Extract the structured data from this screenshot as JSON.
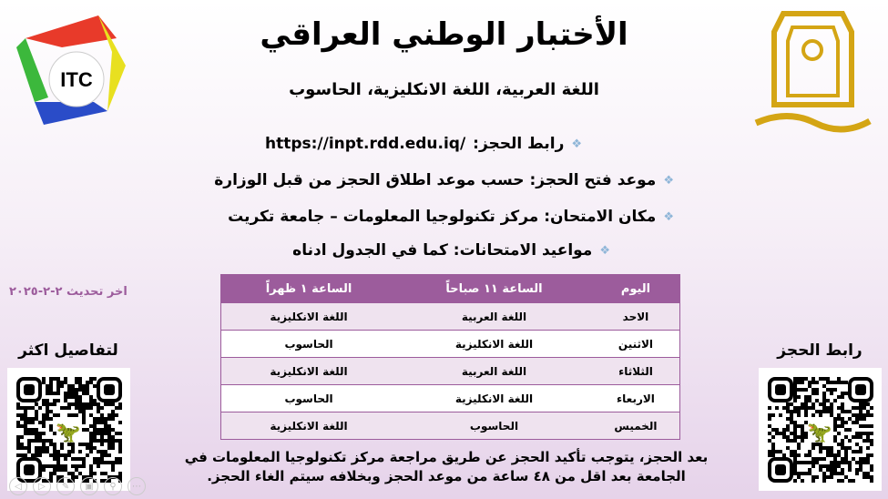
{
  "title": "الأختبار الوطني العراقي",
  "subtitle": "اللغة العربية، اللغة الانكليزية، الحاسوب",
  "bullets": {
    "booking_label": "رابط الحجز:",
    "booking_url": "https://inpt.rdd.edu.iq/",
    "opening": "موعد فتح الحجز: حسب موعد اطلاق الحجز من قبل الوزارة",
    "location": "مكان الامتحان: مركز تكنولوجيا المعلومات – جامعة تكريت",
    "schedule": "مواعيد الامتحانات: كما في الجدول ادناه"
  },
  "table": {
    "headers": [
      "اليوم",
      "الساعة ١١ صباحاً",
      "الساعة ١ ظهراً"
    ],
    "rows": [
      [
        "الاحد",
        "اللغة العربية",
        "اللغة الانكليزية"
      ],
      [
        "الاثنين",
        "اللغة الانكليزية",
        "الحاسوب"
      ],
      [
        "الثلاثاء",
        "اللغة العربية",
        "اللغة الانكليزية"
      ],
      [
        "الاربعاء",
        "اللغة الانكليزية",
        "الحاسوب"
      ],
      [
        "الخميس",
        "الحاسوب",
        "اللغة الانكليزية"
      ]
    ]
  },
  "last_update": "اخر تحديث ٢-٢-٢٠٢٥",
  "qr_left_label": "لتفاصيل اكثر",
  "qr_right_label": "رابط الحجز",
  "footer": "بعد الحجز، يتوجب تأكيد الحجز عن طريق مراجعة مركز تكنولوجيا المعلومات في الجامعة بعد اقل من ٤٨ ساعة من موعد الحجز وبخلافه سيتم الغاء الحجز.",
  "logos": {
    "left": "ITC",
    "right": "جامعة تكريت"
  },
  "colors": {
    "accent": "#9c5c9c",
    "gold": "#d4a514"
  }
}
